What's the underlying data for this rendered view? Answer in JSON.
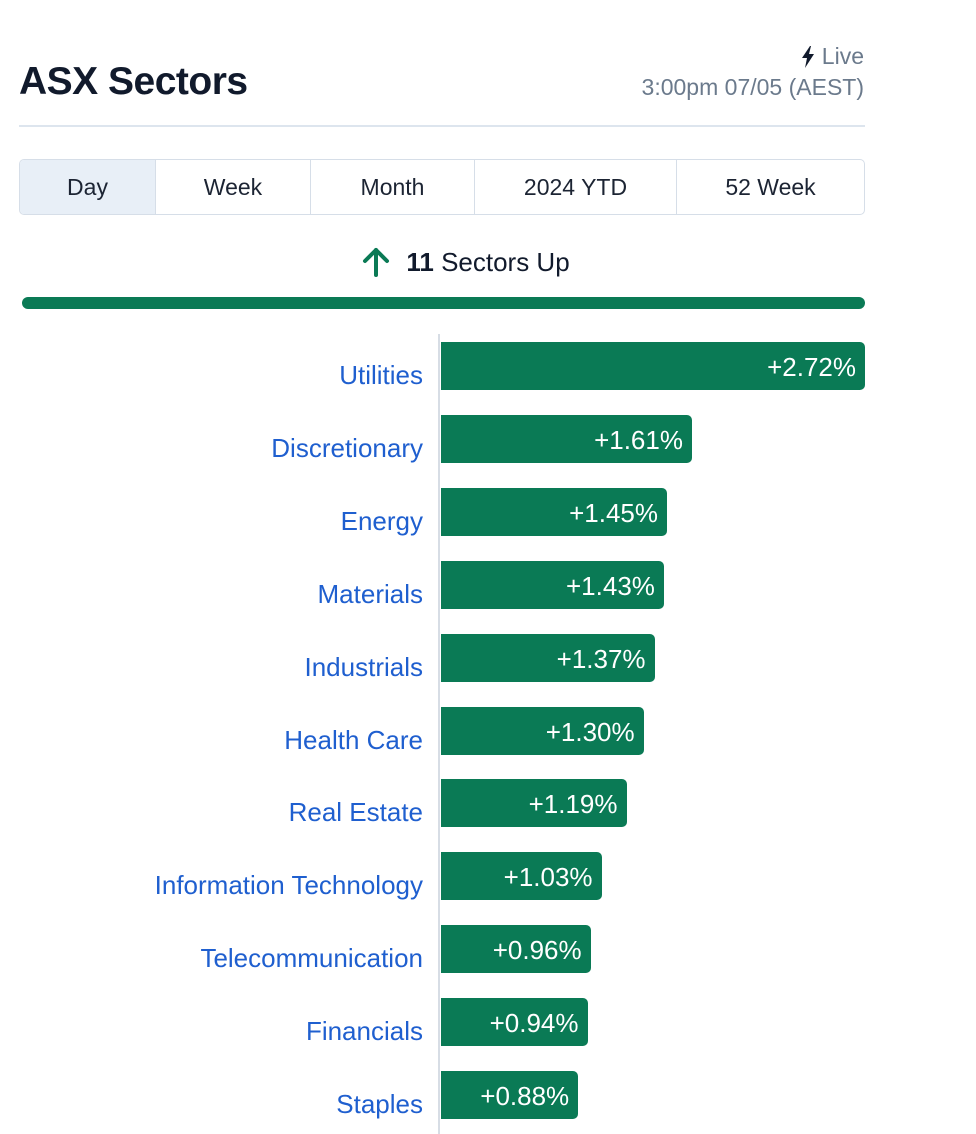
{
  "header": {
    "title": "ASX Sectors",
    "live_label": "Live",
    "live_icon": "lightning-bolt-icon",
    "timestamp": "3:00pm 07/05 (AEST)"
  },
  "tabs": [
    {
      "label": "Day",
      "active": true
    },
    {
      "label": "Week",
      "active": false
    },
    {
      "label": "Month",
      "active": false
    },
    {
      "label": "2024 YTD",
      "active": false
    },
    {
      "label": "52 Week",
      "active": false
    }
  ],
  "summary": {
    "icon": "arrow-up-icon",
    "count": "11",
    "text": "Sectors Up",
    "up_fraction": 1.0
  },
  "colors": {
    "positive": "#0a7a55",
    "link": "#1f5fcf"
  },
  "chart_data": {
    "type": "bar",
    "orientation": "horizontal",
    "categories": [
      "Utilities",
      "Discretionary",
      "Energy",
      "Materials",
      "Industrials",
      "Health Care",
      "Real Estate",
      "Information Technology",
      "Telecommunication",
      "Financials",
      "Staples"
    ],
    "values": [
      2.72,
      1.61,
      1.45,
      1.43,
      1.37,
      1.3,
      1.19,
      1.03,
      0.96,
      0.94,
      0.88
    ],
    "value_labels": [
      "+2.72%",
      "+1.61%",
      "+1.45%",
      "+1.43%",
      "+1.37%",
      "+1.30%",
      "+1.19%",
      "+1.03%",
      "+0.96%",
      "+0.94%",
      "+0.88%"
    ],
    "unit": "%"
  }
}
